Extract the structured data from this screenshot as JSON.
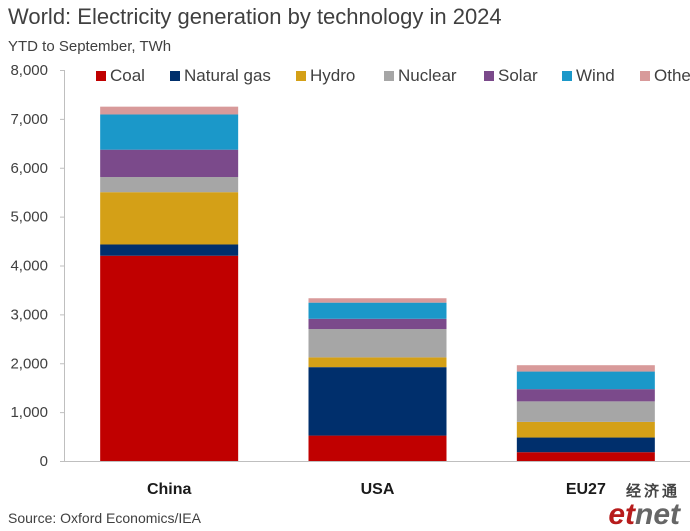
{
  "header": {
    "title": "World: Electricity generation by technology in 2024",
    "subtitle": "YTD to September, TWh"
  },
  "footer": {
    "source": "Source: Oxford Economics/IEA"
  },
  "logo": {
    "chinese": "经济通",
    "et": "et",
    "net": "net"
  },
  "chart_data": {
    "type": "bar",
    "stacked": true,
    "categories": [
      "China",
      "USA",
      "EU27"
    ],
    "series": [
      {
        "name": "Coal",
        "color": "#c00000",
        "values": [
          4200,
          520,
          180
        ]
      },
      {
        "name": "Natural gas",
        "color": "#002f6c",
        "values": [
          230,
          1400,
          300
        ]
      },
      {
        "name": "Hydro",
        "color": "#d4a017",
        "values": [
          1070,
          200,
          320
        ]
      },
      {
        "name": "Nuclear",
        "color": "#a6a6a6",
        "values": [
          310,
          580,
          420
        ]
      },
      {
        "name": "Solar",
        "color": "#7b4a8b",
        "values": [
          560,
          210,
          250
        ]
      },
      {
        "name": "Wind",
        "color": "#1b98c9",
        "values": [
          720,
          330,
          360
        ]
      },
      {
        "name": "Other",
        "color": "#d89a9a",
        "values": [
          160,
          90,
          130
        ]
      }
    ],
    "ylim": [
      0,
      8000
    ],
    "yticks": [
      0,
      1000,
      2000,
      3000,
      4000,
      5000,
      6000,
      7000,
      8000
    ],
    "ytick_labels": [
      "0",
      "1,000",
      "2,000",
      "3,000",
      "4,000",
      "5,000",
      "6,000",
      "7,000",
      "8,000"
    ],
    "xlabel": "",
    "ylabel": "",
    "grid": false,
    "legend_position": "top"
  }
}
